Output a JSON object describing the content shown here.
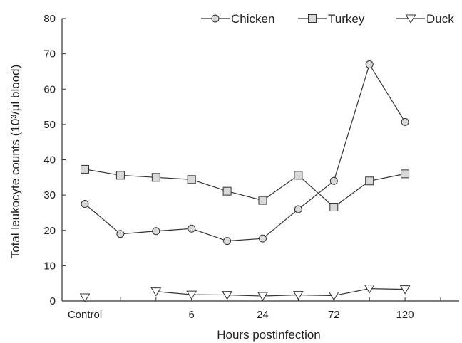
{
  "chart_data": {
    "type": "line",
    "xlabel": "Hours postinfection",
    "ylabel": "Total leukocyte counts (10³/µl blood)",
    "ylim": [
      0,
      80
    ],
    "yticks": [
      0,
      10,
      20,
      30,
      40,
      50,
      60,
      70,
      80
    ],
    "x_positions": 11,
    "x_tick_labels": [
      {
        "index": 0,
        "label": "Control"
      },
      {
        "index": 3,
        "label": "6"
      },
      {
        "index": 5,
        "label": "24"
      },
      {
        "index": 7,
        "label": "72"
      },
      {
        "index": 9,
        "label": "120"
      }
    ],
    "legend_position": "top-right",
    "series": [
      {
        "name": "Chicken",
        "marker": "circle",
        "values": [
          27.5,
          19,
          19.8,
          20.5,
          17,
          17.7,
          26,
          34,
          67,
          50.7,
          null
        ]
      },
      {
        "name": "Turkey",
        "marker": "square",
        "values": [
          37.3,
          35.6,
          35,
          34.4,
          31.1,
          28.5,
          35.6,
          26.6,
          34,
          36,
          null
        ]
      },
      {
        "name": "Duck",
        "marker": "triangle-down",
        "values": [
          1,
          null,
          2.7,
          1.8,
          1.7,
          1.4,
          1.7,
          1.5,
          3.5,
          3.3,
          null
        ]
      }
    ]
  }
}
